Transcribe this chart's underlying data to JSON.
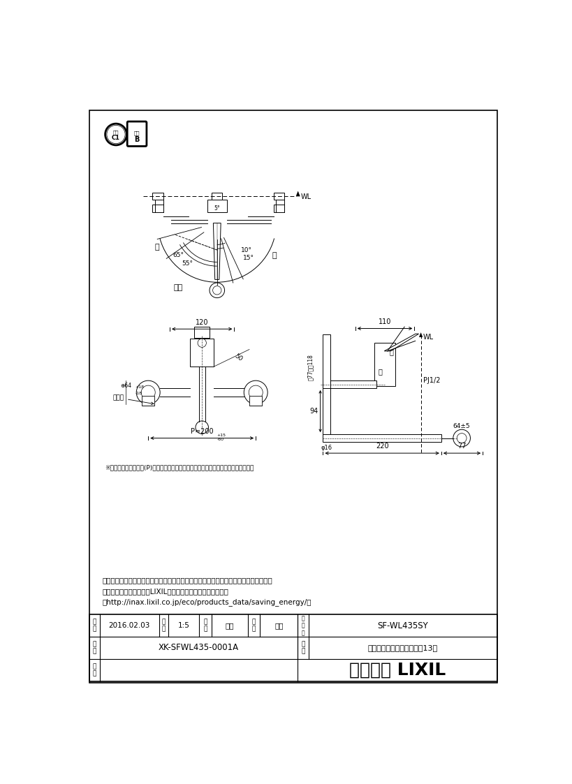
{
  "bg_color": "#ffffff",
  "notes": [
    "・流量調節栅は取付脚に付いています。取替えの際は、取付脚ごと交換してください。",
    "・節湯記号については、LIXILホームページを参照ください。",
    "（http://inax.lixil.co.jp/eco/products_data/saving_energy/）"
  ],
  "table": {
    "date_label": "日\n付",
    "date_val": "2016.02.03",
    "scale_label": "尺\n度",
    "scale_val": "1:5",
    "draw_label": "製\n図",
    "draw_val": "宮本",
    "check_label": "検\n図",
    "check_val": "池川",
    "pn_label": "品\n番\n号",
    "pn_val": "SF-WL435SY",
    "fig_label": "図\n番",
    "fig_val": "XK-SFWL435-0001A",
    "pname_label": "品\n名",
    "pname_val": "シングルレバー混合水栓（13）",
    "biko_label": "備\n考",
    "company": "株式会社 LIXIL"
  },
  "dim_note": "※印寸法は配管ピッチ(P)が最大～最小の場合を（標準寸法　最大）で示しています。"
}
